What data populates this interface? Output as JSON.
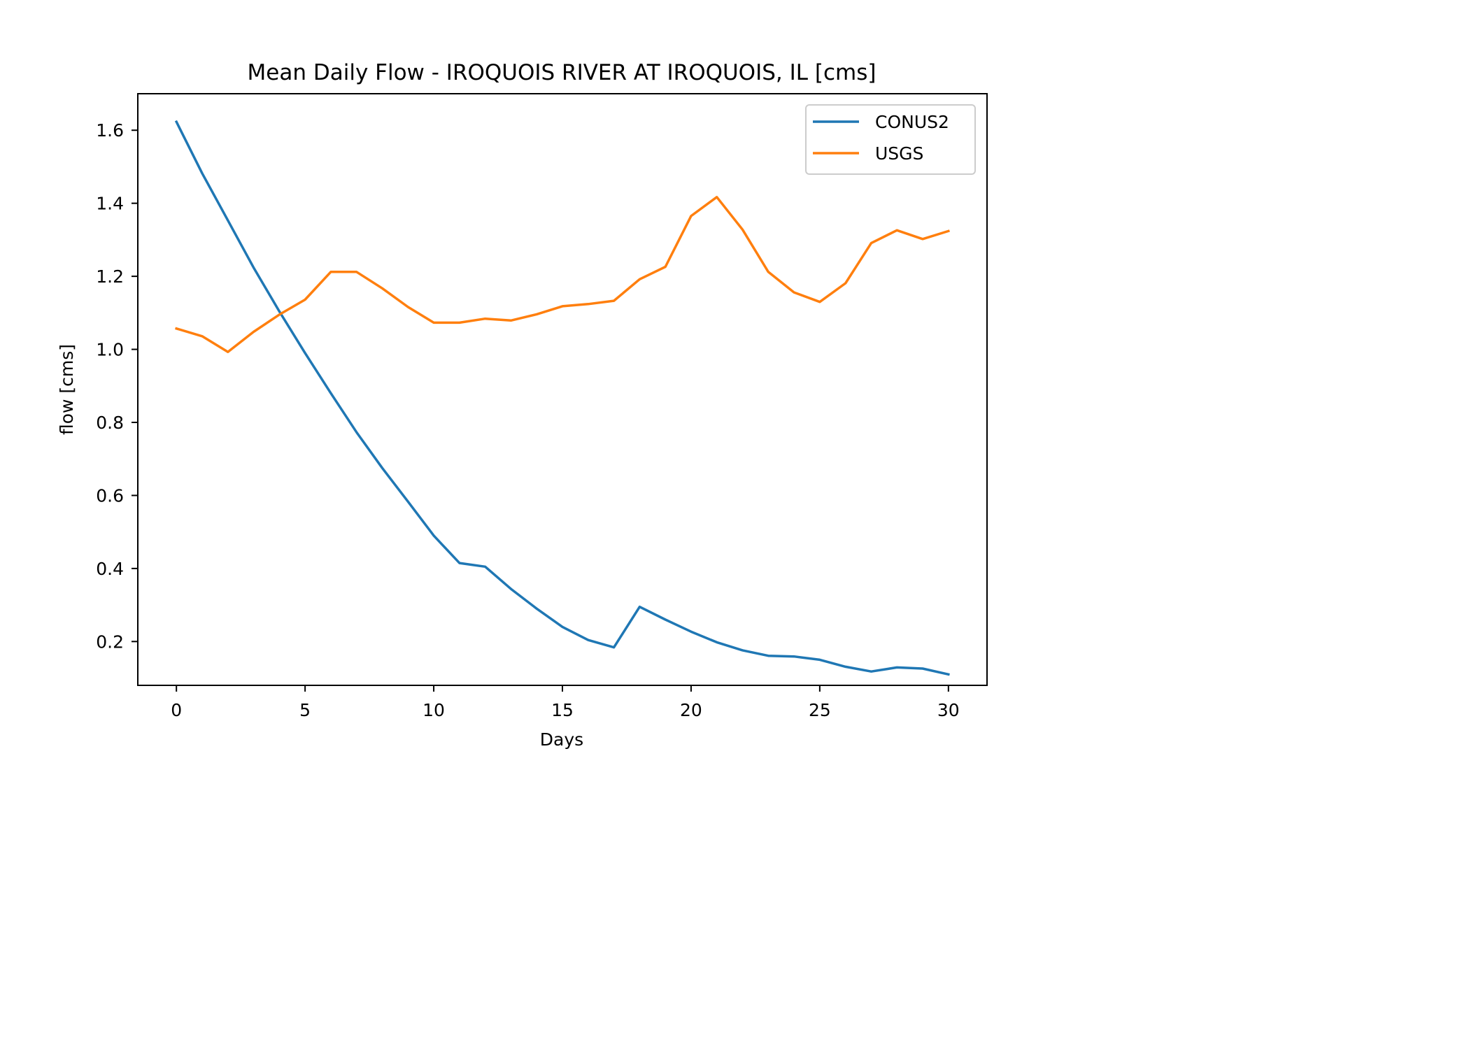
{
  "chart_data": {
    "type": "line",
    "title": "Mean Daily Flow - IROQUOIS RIVER AT IROQUOIS, IL [cms]",
    "xlabel": "Days",
    "ylabel": "flow [cms]",
    "xlim": [
      -1.5,
      31.5
    ],
    "ylim": [
      0.08,
      1.7
    ],
    "xticks": [
      0,
      5,
      10,
      15,
      20,
      25,
      30
    ],
    "xtick_labels": [
      "0",
      "5",
      "10",
      "15",
      "20",
      "25",
      "30"
    ],
    "yticks": [
      0.2,
      0.4,
      0.6,
      0.8,
      1.0,
      1.2,
      1.4,
      1.6
    ],
    "ytick_labels": [
      "0.2",
      "0.4",
      "0.6",
      "0.8",
      "1.0",
      "1.2",
      "1.4",
      "1.6"
    ],
    "grid": false,
    "legend_position": "top-right",
    "x": [
      0,
      1,
      2,
      3,
      4,
      5,
      6,
      7,
      8,
      9,
      10,
      11,
      12,
      13,
      14,
      15,
      16,
      17,
      18,
      19,
      20,
      21,
      22,
      23,
      24,
      25,
      26,
      27,
      28,
      29,
      30
    ],
    "series": [
      {
        "name": "CONUS2",
        "color": "#1f77b4",
        "values": [
          1.623,
          1.482,
          1.353,
          1.224,
          1.104,
          0.99,
          0.88,
          0.773,
          0.675,
          0.583,
          0.49,
          0.415,
          0.405,
          0.344,
          0.29,
          0.24,
          0.204,
          0.184,
          0.295,
          0.26,
          0.227,
          0.198,
          0.176,
          0.161,
          0.159,
          0.15,
          0.131,
          0.118,
          0.129,
          0.126,
          0.11
        ]
      },
      {
        "name": "USGS",
        "color": "#ff7f0e",
        "values": [
          1.057,
          1.036,
          0.993,
          1.048,
          1.095,
          1.136,
          1.212,
          1.212,
          1.167,
          1.116,
          1.073,
          1.073,
          1.084,
          1.079,
          1.096,
          1.118,
          1.124,
          1.133,
          1.192,
          1.226,
          1.365,
          1.417,
          1.328,
          1.212,
          1.156,
          1.13,
          1.181,
          1.291,
          1.326,
          1.302,
          1.324
        ]
      }
    ]
  }
}
